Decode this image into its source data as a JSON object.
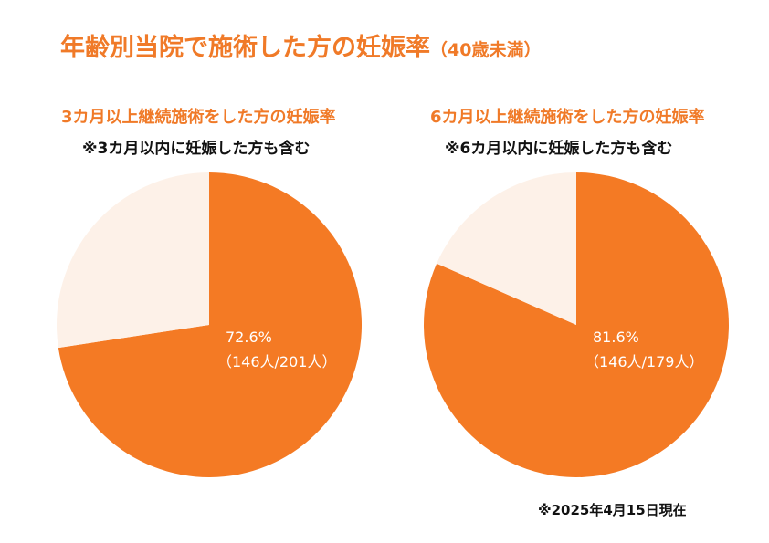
{
  "header": {
    "title": "年齢別当院で施術した方の妊娠率",
    "subtitle": "（40歳未満）"
  },
  "colors": {
    "accent": "#f47a24",
    "remainder": "#fdf1e8",
    "title": "#f07a28",
    "text": "#111111"
  },
  "chart_data": [
    {
      "type": "pie",
      "title": "3カ月以上継続施術をした方の妊娠率",
      "note": "※3カ月以内に妊娠した方も含む",
      "slices": [
        {
          "value": 72.6,
          "label_percent": "72.6%",
          "label_count": "（146人/201人）"
        },
        {
          "value": 27.4
        }
      ]
    },
    {
      "type": "pie",
      "title": "6カ月以上継続施術をした方の妊娠率",
      "note": "※6カ月以内に妊娠した方も含む",
      "slices": [
        {
          "value": 81.6,
          "label_percent": "81.6%",
          "label_count": "（146人/179人）"
        },
        {
          "value": 18.4
        }
      ]
    }
  ],
  "footnote": "※2025年4月15日現在"
}
